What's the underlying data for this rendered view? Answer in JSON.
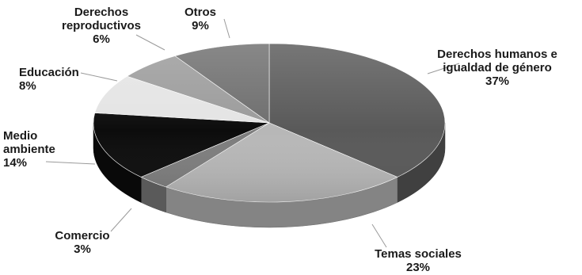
{
  "chart_data": {
    "type": "pie",
    "title": "",
    "slices": [
      {
        "name": "Derechos humanos e igualdad de género",
        "label_lines": [
          "Derechos humanos e",
          "igualdad de género"
        ],
        "value": 37,
        "value_label": "37%",
        "color": "#595959"
      },
      {
        "name": "Temas sociales",
        "label_lines": [
          "Temas sociales"
        ],
        "value": 23,
        "value_label": "23%",
        "color": "#b7b7b7"
      },
      {
        "name": "Comercio",
        "label_lines": [
          "Comercio"
        ],
        "value": 3,
        "value_label": "3%",
        "color": "#7d7d7d"
      },
      {
        "name": "Medio ambiente",
        "label_lines": [
          "Medio",
          "ambiente"
        ],
        "value": 14,
        "value_label": "14%",
        "color": "#0c0c0c"
      },
      {
        "name": "Educación",
        "label_lines": [
          "Educación"
        ],
        "value": 8,
        "value_label": "8%",
        "color": "#e4e4e4"
      },
      {
        "name": "Derechos reproductivos",
        "label_lines": [
          "Derechos",
          "reproductivos"
        ],
        "value": 6,
        "value_label": "6%",
        "color": "#9b9b9b"
      },
      {
        "name": "Otros",
        "label_lines": [
          "Otros"
        ],
        "value": 9,
        "value_label": "9%",
        "color": "#6e6e6e"
      }
    ],
    "start_angle_deg": 270,
    "direction": "clockwise",
    "style": "3d-tilted",
    "legend": "none",
    "labels": "outside-with-leader-lines"
  }
}
